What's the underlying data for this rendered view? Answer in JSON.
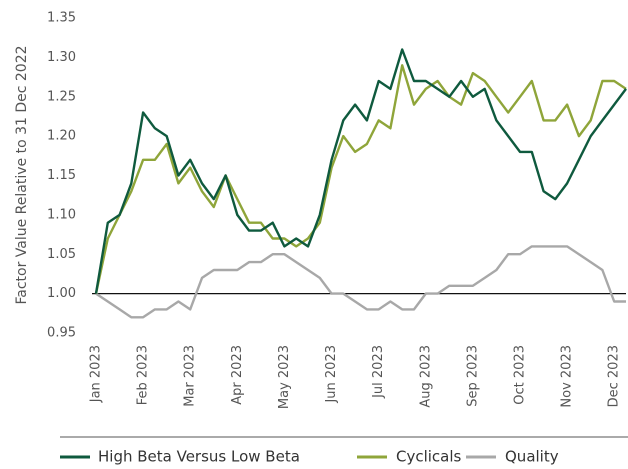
{
  "chart_data": {
    "type": "line",
    "ylabel": "Factor Value Relative to 31 Dec 2022",
    "categories": [
      "Jan 2023",
      null,
      null,
      null,
      "Feb 2023",
      null,
      null,
      null,
      "Mar 2023",
      null,
      null,
      null,
      "Apr 2023",
      null,
      null,
      null,
      "May 2023",
      null,
      null,
      null,
      "Jun 2023",
      null,
      null,
      null,
      "Jul 2023",
      null,
      null,
      null,
      "Aug 2023",
      null,
      null,
      null,
      "Sep 2023",
      null,
      null,
      null,
      "Oct 2023",
      null,
      null,
      null,
      "Nov 2023",
      null,
      null,
      null,
      "Dec 2023",
      null
    ],
    "series": [
      {
        "name": "High Beta Versus Low Beta",
        "color": "#0f5a3e",
        "values": [
          1.0,
          1.09,
          1.1,
          1.14,
          1.23,
          1.21,
          1.2,
          1.15,
          1.17,
          1.14,
          1.12,
          1.15,
          1.1,
          1.08,
          1.08,
          1.09,
          1.06,
          1.07,
          1.06,
          1.1,
          1.17,
          1.22,
          1.24,
          1.22,
          1.27,
          1.26,
          1.31,
          1.27,
          1.27,
          1.26,
          1.25,
          1.27,
          1.25,
          1.26,
          1.22,
          1.2,
          1.18,
          1.18,
          1.13,
          1.12,
          1.14,
          1.17,
          1.2,
          1.22,
          1.24,
          1.26
        ]
      },
      {
        "name": "Cyclicals",
        "color": "#8fa53a",
        "values": [
          1.0,
          1.07,
          1.1,
          1.13,
          1.17,
          1.17,
          1.19,
          1.14,
          1.16,
          1.13,
          1.11,
          1.15,
          1.12,
          1.09,
          1.09,
          1.07,
          1.07,
          1.06,
          1.07,
          1.09,
          1.16,
          1.2,
          1.18,
          1.19,
          1.22,
          1.21,
          1.29,
          1.24,
          1.26,
          1.27,
          1.25,
          1.24,
          1.28,
          1.27,
          1.25,
          1.23,
          1.25,
          1.27,
          1.22,
          1.22,
          1.24,
          1.2,
          1.22,
          1.27,
          1.27,
          1.26
        ]
      },
      {
        "name": "Quality",
        "color": "#a8a8a8",
        "values": [
          1.0,
          0.99,
          0.98,
          0.97,
          0.97,
          0.98,
          0.98,
          0.99,
          0.98,
          1.02,
          1.03,
          1.03,
          1.03,
          1.04,
          1.04,
          1.05,
          1.05,
          1.04,
          1.03,
          1.02,
          1.0,
          1.0,
          0.99,
          0.98,
          0.98,
          0.99,
          0.98,
          0.98,
          1.0,
          1.0,
          1.01,
          1.01,
          1.01,
          1.02,
          1.03,
          1.05,
          1.05,
          1.06,
          1.06,
          1.06,
          1.06,
          1.05,
          1.04,
          1.03,
          0.99,
          0.99
        ]
      }
    ],
    "ylim": [
      0.95,
      1.35
    ],
    "yticks": [
      0.95,
      {
        "value": 1,
        "label": "1.00"
      },
      1.05,
      {
        "value": 1.1,
        "label": "1.10"
      },
      1.15,
      {
        "value": 1.2,
        "label": "1.20"
      },
      1.25,
      {
        "value": 1.3,
        "label": "1.30"
      },
      1.35
    ],
    "reference_line": 1,
    "grid": false,
    "legend": "bottom"
  }
}
